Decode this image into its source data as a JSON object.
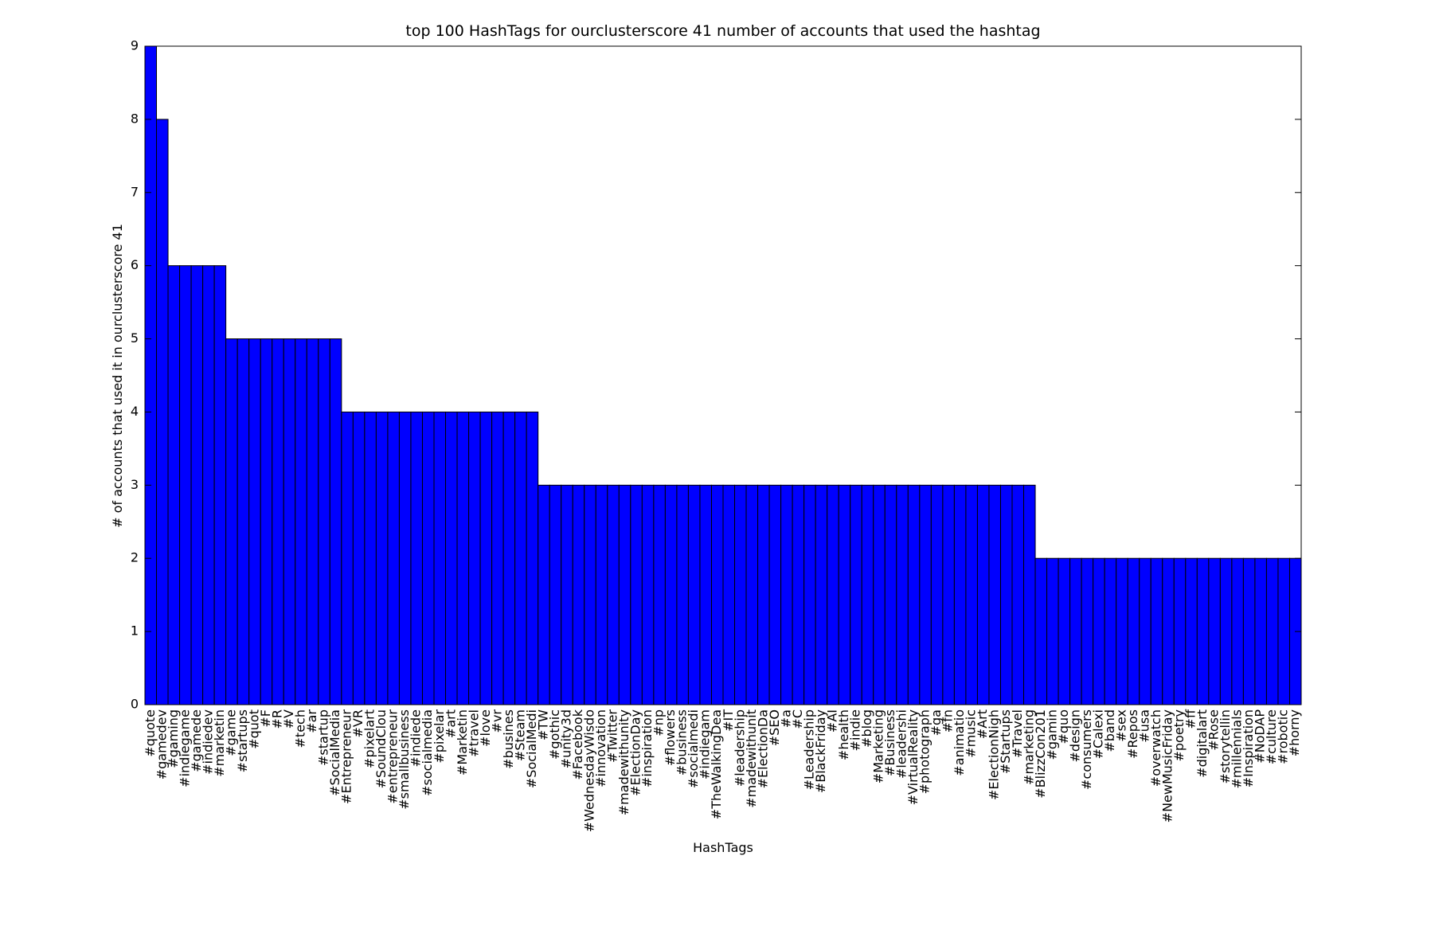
{
  "chart_data": {
    "type": "bar",
    "title": "top 100 HashTags for ourclusterscore 41 number of accounts that used the hashtag",
    "x_label": "HashTags",
    "y_label": "# of accounts that used it in ourclusterscore 41",
    "color": "#0000ff",
    "categories": [
      "#quote",
      "#gamedev",
      "#gaming",
      "#indiegame",
      "#gamede",
      "#indiedev",
      "#marketin",
      "#game",
      "#startups",
      "#quot",
      "#F",
      "#R",
      "#V",
      "#tech",
      "#ar",
      "#startup",
      "#SocialMedia",
      "#Entrepreneur",
      "#VR",
      "#pixelart",
      "#SoundClou",
      "#entrepreneur",
      "#smallbusiness",
      "#indiede",
      "#socialmedia",
      "#pixelar",
      "#art",
      "#Marketin",
      "#travel",
      "#love",
      "#vr",
      "#busines",
      "#Steam",
      "#SocialMedi",
      "#TW",
      "#gothic",
      "#unity3d",
      "#Facebook",
      "#WednesdayWisdo",
      "#innovation",
      "#Twitter",
      "#madewithunity",
      "#ElectionDay",
      "#inspiration",
      "#np",
      "#flowers",
      "#business",
      "#socialmedi",
      "#indiegam",
      "#TheWalkingDea",
      "#IT",
      "#leadership",
      "#madewithunit",
      "#ElectionDa",
      "#SEO",
      "#a",
      "#C",
      "#Leadership",
      "#BlackFriday",
      "#AI",
      "#health",
      "#indie",
      "#blog",
      "#Marketing",
      "#Business",
      "#leadershi",
      "#VirtualReality",
      "#photograph",
      "#ga",
      "#fn",
      "#animatio",
      "#music",
      "#Art",
      "#ElectionNigh",
      "#Startups",
      "#Travel",
      "#marketing",
      "#BlizzCon201",
      "#gamin",
      "#quo",
      "#design",
      "#consumers",
      "#Calexi",
      "#band",
      "#sex",
      "#Repos",
      "#usa",
      "#overwatch",
      "#NewMusicFriday",
      "#poetry",
      "#ff",
      "#digitalart",
      "#Rose",
      "#storytellin",
      "#millennials",
      "#Inspiration",
      "#NoDAP",
      "#culture",
      "#robotic",
      "#horny"
    ],
    "values": [
      9,
      8,
      6,
      6,
      6,
      6,
      6,
      5,
      5,
      5,
      5,
      5,
      5,
      5,
      5,
      5,
      5,
      4,
      4,
      4,
      4,
      4,
      4,
      4,
      4,
      4,
      4,
      4,
      4,
      4,
      4,
      4,
      4,
      4,
      3,
      3,
      3,
      3,
      3,
      3,
      3,
      3,
      3,
      3,
      3,
      3,
      3,
      3,
      3,
      3,
      3,
      3,
      3,
      3,
      3,
      3,
      3,
      3,
      3,
      3,
      3,
      3,
      3,
      3,
      3,
      3,
      3,
      3,
      3,
      3,
      3,
      3,
      3,
      3,
      3,
      3,
      3,
      2,
      2,
      2,
      2,
      2,
      2,
      2,
      2,
      2,
      2,
      2,
      2,
      2,
      2,
      2,
      2,
      2,
      2,
      2,
      2,
      2,
      2,
      2
    ],
    "ylim": [
      0,
      9
    ],
    "yticks": [
      0,
      1,
      2,
      3,
      4,
      5,
      6,
      7,
      8,
      9
    ]
  }
}
